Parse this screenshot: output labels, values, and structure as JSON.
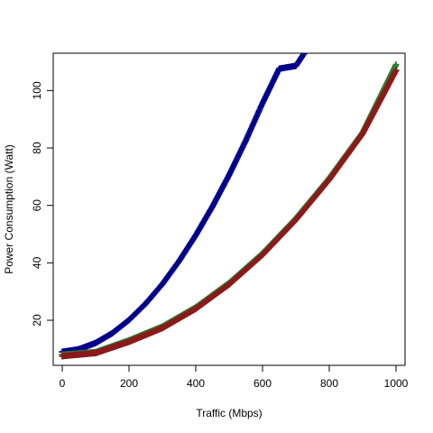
{
  "chart_data": {
    "type": "scatter",
    "title": "",
    "xlabel": "Traffic (Mbps)",
    "ylabel": "Power Consumption (Watt)",
    "xlim": [
      -27,
      1027
    ],
    "ylim": [
      4.3,
      113
    ],
    "x_ticks": [
      0,
      200,
      400,
      600,
      800,
      1000
    ],
    "y_ticks": [
      20,
      40,
      60,
      80,
      100
    ],
    "grid": false,
    "legend": "none",
    "series": [
      {
        "color": "#00008B",
        "marker": "cross",
        "x": [
          0,
          50,
          100,
          150,
          200,
          250,
          300,
          350,
          400,
          450,
          500,
          550,
          600,
          650,
          700,
          725
        ],
        "y": [
          9.0,
          9.9,
          12.1,
          15.5,
          20.1,
          25.8,
          32.6,
          40.6,
          49.6,
          59.6,
          70.6,
          82.6,
          95.6,
          107.6,
          108.6,
          113.0
        ]
      },
      {
        "color": "#2E7D32",
        "marker": "cross",
        "x": [
          0,
          100,
          200,
          300,
          400,
          500,
          600,
          700,
          800,
          900,
          1000
        ],
        "y": [
          8.0,
          8.9,
          13.0,
          17.8,
          24.5,
          33.0,
          43.3,
          55.5,
          69.5,
          85.4,
          109.0
        ]
      },
      {
        "color": "#8B1A1A",
        "marker": "cross",
        "x": [
          0,
          100,
          200,
          300,
          400,
          500,
          600,
          700,
          800,
          900,
          1000
        ],
        "y": [
          7.5,
          8.6,
          12.5,
          17.3,
          24.0,
          32.5,
          42.8,
          55.0,
          69.0,
          85.0,
          107.0
        ]
      }
    ]
  }
}
